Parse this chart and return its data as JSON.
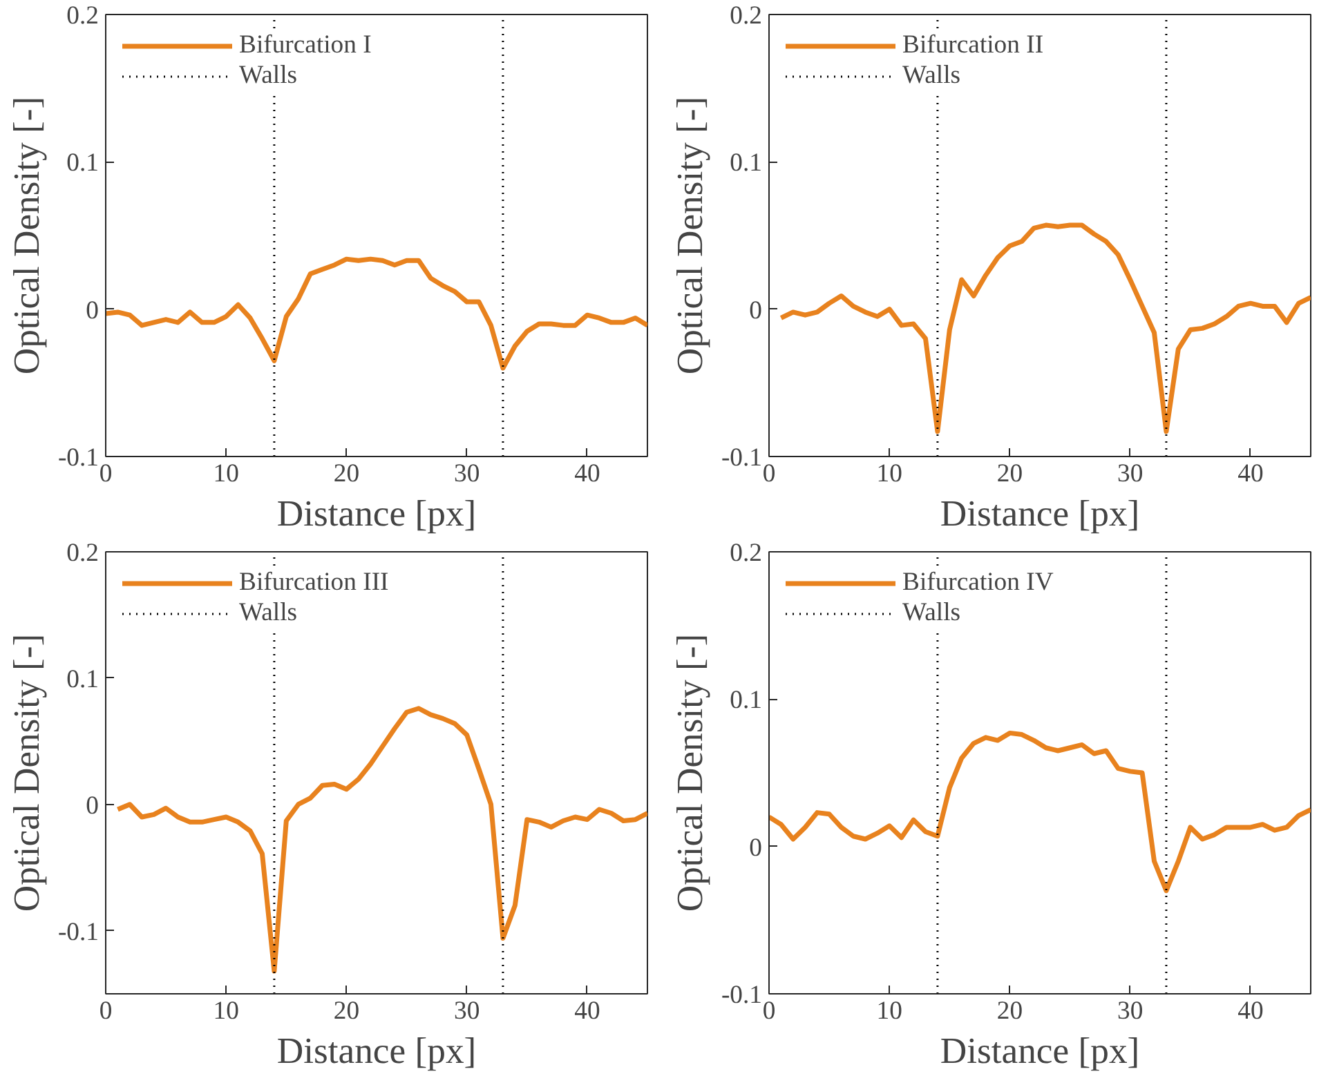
{
  "chart_data": [
    {
      "type": "line",
      "xlabel": "Distance [px]",
      "ylabel": "Optical Density [-]",
      "xlim": [
        0,
        45
      ],
      "ylim": [
        -0.1,
        0.2
      ],
      "xticks": [
        0,
        10,
        20,
        30,
        40
      ],
      "yticks": [
        -0.1,
        0,
        0.1,
        0.2
      ],
      "grid": false,
      "legend": "top left",
      "marker": "none",
      "line_style": "solid",
      "x": [
        0,
        1,
        2,
        3,
        4,
        5,
        6,
        7,
        8,
        9,
        10,
        11,
        12,
        13,
        14,
        15,
        16,
        17,
        18,
        19,
        20,
        21,
        22,
        23,
        24,
        25,
        26,
        27,
        28,
        29,
        30,
        31,
        32,
        33,
        34,
        35,
        36,
        37,
        38,
        39,
        40,
        41,
        42,
        43,
        44,
        45
      ],
      "series": [
        {
          "name": "Bifurcation I",
          "color": "#e8821e",
          "values": [
            -0.003,
            -0.002,
            -0.004,
            -0.011,
            -0.009,
            -0.007,
            -0.009,
            -0.002,
            -0.009,
            -0.009,
            -0.005,
            0.003,
            -0.006,
            -0.02,
            -0.035,
            -0.005,
            0.007,
            0.024,
            0.027,
            0.03,
            0.034,
            0.033,
            0.034,
            0.033,
            0.03,
            0.033,
            0.033,
            0.021,
            0.016,
            0.012,
            0.005,
            0.005,
            -0.011,
            -0.04,
            -0.025,
            -0.015,
            -0.01,
            -0.01,
            -0.011,
            -0.011,
            -0.004,
            -0.006,
            -0.009,
            -0.009,
            -0.006,
            -0.011
          ]
        }
      ],
      "ref_lines": [
        {
          "axis": "x",
          "value": 14,
          "label": "Walls",
          "color": "#000000",
          "line_style": "dotted"
        },
        {
          "axis": "x",
          "value": 33,
          "color": "#000000",
          "line_style": "dotted"
        }
      ]
    },
    {
      "type": "line",
      "xlabel": "Distance [px]",
      "ylabel": "Optical Density [-]",
      "xlim": [
        0,
        45
      ],
      "ylim": [
        -0.1,
        0.2
      ],
      "xticks": [
        0,
        10,
        20,
        30,
        40
      ],
      "yticks": [
        -0.1,
        0,
        0.1,
        0.2
      ],
      "grid": false,
      "legend": "top left",
      "marker": "none",
      "line_style": "solid",
      "x": [
        1,
        2,
        3,
        4,
        5,
        6,
        7,
        8,
        9,
        10,
        11,
        12,
        13,
        14,
        15,
        16,
        17,
        18,
        19,
        20,
        21,
        22,
        23,
        24,
        25,
        26,
        27,
        28,
        29,
        30,
        31,
        32,
        33,
        34,
        35,
        36,
        37,
        38,
        39,
        40,
        41,
        42,
        43,
        44,
        45
      ],
      "series": [
        {
          "name": "Bifurcation II",
          "color": "#e8821e",
          "values": [
            -0.006,
            -0.002,
            -0.004,
            -0.002,
            0.004,
            0.009,
            0.002,
            -0.002,
            -0.005,
            0,
            -0.011,
            -0.01,
            -0.02,
            -0.083,
            -0.014,
            0.02,
            0.009,
            0.023,
            0.035,
            0.043,
            0.046,
            0.055,
            0.057,
            0.056,
            0.057,
            0.057,
            0.051,
            0.046,
            0.037,
            0.02,
            0.002,
            -0.016,
            -0.083,
            -0.027,
            -0.014,
            -0.013,
            -0.01,
            -0.005,
            0.002,
            0.004,
            0.002,
            0.002,
            -0.009,
            0.004,
            0.008
          ]
        }
      ],
      "ref_lines": [
        {
          "axis": "x",
          "value": 14,
          "label": "Walls",
          "color": "#000000",
          "line_style": "dotted"
        },
        {
          "axis": "x",
          "value": 33,
          "color": "#000000",
          "line_style": "dotted"
        }
      ]
    },
    {
      "type": "line",
      "xlabel": "Distance [px]",
      "ylabel": "Optical Density [-]",
      "xlim": [
        0,
        45
      ],
      "ylim": [
        -0.15,
        0.2
      ],
      "xticks": [
        0,
        10,
        20,
        30,
        40
      ],
      "yticks": [
        -0.1,
        0,
        0.1,
        0.2
      ],
      "grid": false,
      "legend": "top left",
      "marker": "none",
      "line_style": "solid",
      "x": [
        1,
        2,
        3,
        4,
        5,
        6,
        7,
        8,
        9,
        10,
        11,
        12,
        13,
        14,
        15,
        16,
        17,
        18,
        19,
        20,
        21,
        22,
        23,
        24,
        25,
        26,
        27,
        28,
        29,
        30,
        31,
        32,
        33,
        34,
        35,
        36,
        37,
        38,
        39,
        40,
        41,
        42,
        43,
        44,
        45
      ],
      "series": [
        {
          "name": "Bifurcation III",
          "color": "#e8821e",
          "values": [
            -0.004,
            0,
            -0.01,
            -0.008,
            -0.003,
            -0.01,
            -0.014,
            -0.014,
            -0.012,
            -0.01,
            -0.014,
            -0.021,
            -0.039,
            -0.132,
            -0.013,
            0,
            0.005,
            0.015,
            0.016,
            0.012,
            0.02,
            0.032,
            0.046,
            0.06,
            0.073,
            0.076,
            0.071,
            0.068,
            0.064,
            0.055,
            0.028,
            0,
            -0.106,
            -0.08,
            -0.012,
            -0.014,
            -0.018,
            -0.013,
            -0.01,
            -0.012,
            -0.004,
            -0.007,
            -0.013,
            -0.012,
            -0.007
          ]
        }
      ],
      "ref_lines": [
        {
          "axis": "x",
          "value": 14,
          "label": "Walls",
          "color": "#000000",
          "line_style": "dotted"
        },
        {
          "axis": "x",
          "value": 33,
          "color": "#000000",
          "line_style": "dotted"
        }
      ]
    },
    {
      "type": "line",
      "xlabel": "Distance [px]",
      "ylabel": "Optical Density [-]",
      "xlim": [
        0,
        45
      ],
      "ylim": [
        -0.1,
        0.2
      ],
      "xticks": [
        0,
        10,
        20,
        30,
        40
      ],
      "yticks": [
        -0.1,
        0,
        0.1,
        0.2
      ],
      "grid": false,
      "legend": "top left",
      "marker": "none",
      "line_style": "solid",
      "x": [
        0,
        1,
        2,
        3,
        4,
        5,
        6,
        7,
        8,
        9,
        10,
        11,
        12,
        13,
        14,
        15,
        16,
        17,
        18,
        19,
        20,
        21,
        22,
        23,
        24,
        25,
        26,
        27,
        28,
        29,
        30,
        31,
        32,
        33,
        34,
        35,
        36,
        37,
        38,
        39,
        40,
        41,
        42,
        43,
        44,
        45
      ],
      "series": [
        {
          "name": "Bifurcation IV",
          "color": "#e8821e",
          "values": [
            0.02,
            0.015,
            0.005,
            0.013,
            0.023,
            0.022,
            0.013,
            0.007,
            0.005,
            0.009,
            0.014,
            0.006,
            0.018,
            0.01,
            0.007,
            0.04,
            0.06,
            0.07,
            0.074,
            0.072,
            0.077,
            0.076,
            0.072,
            0.067,
            0.065,
            0.067,
            0.069,
            0.063,
            0.065,
            0.053,
            0.051,
            0.05,
            -0.01,
            -0.03,
            -0.01,
            0.013,
            0.005,
            0.008,
            0.013,
            0.013,
            0.013,
            0.015,
            0.011,
            0.013,
            0.021,
            0.025
          ]
        }
      ],
      "ref_lines": [
        {
          "axis": "x",
          "value": 14,
          "label": "Walls",
          "color": "#000000",
          "line_style": "dotted"
        },
        {
          "axis": "x",
          "value": 33,
          "color": "#000000",
          "line_style": "dotted"
        }
      ]
    }
  ]
}
